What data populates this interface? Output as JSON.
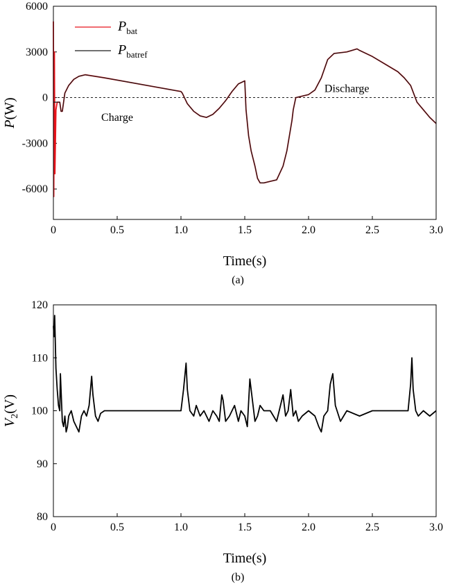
{
  "chart_data": [
    {
      "type": "line",
      "caption": "(a)",
      "xlabel": "Time(s)",
      "ylabel_main": "P",
      "ylabel_unit": "(W)",
      "xlim": [
        0,
        3.0
      ],
      "ylim": [
        -8000,
        6000
      ],
      "xticks": [
        "0",
        "0.5",
        "1.0",
        "1.5",
        "2.0",
        "2.5",
        "3.0"
      ],
      "xtick_values": [
        0,
        0.5,
        1.0,
        1.5,
        2.0,
        2.5,
        3.0
      ],
      "yticks": [
        "6000",
        "3000",
        "0",
        "-3000",
        "-6000"
      ],
      "ytick_values": [
        6000,
        3000,
        0,
        -3000,
        -6000
      ],
      "zero_line": "dashed",
      "legend_position": "top-left",
      "annotations": [
        {
          "text": "Charge",
          "x": 0.5,
          "y": -1300
        },
        {
          "text": "Discharge",
          "x": 2.3,
          "y": 600
        }
      ],
      "series": [
        {
          "name_main": "P",
          "name_sub": "bat",
          "color": "#e8141c",
          "x": [
            0,
            0.003,
            0.008,
            0.012,
            0.02,
            0.03,
            0.05,
            0.06,
            0.07,
            0.09,
            0.12,
            0.16,
            0.2,
            0.25,
            0.4,
            0.6,
            0.8,
            1.0,
            1.01,
            1.05,
            1.1,
            1.15,
            1.2,
            1.25,
            1.3,
            1.35,
            1.4,
            1.45,
            1.5,
            1.51,
            1.53,
            1.55,
            1.58,
            1.6,
            1.62,
            1.65,
            1.7,
            1.75,
            1.8,
            1.83,
            1.85,
            1.87,
            1.88,
            1.9,
            2.0,
            2.05,
            2.1,
            2.15,
            2.2,
            2.3,
            2.38,
            2.4,
            2.5,
            2.6,
            2.7,
            2.75,
            2.8,
            2.85,
            2.9,
            2.95,
            3.0
          ],
          "y": [
            5000,
            -6500,
            3000,
            -5000,
            -800,
            -300,
            -300,
            -900,
            -900,
            300,
            800,
            1200,
            1400,
            1500,
            1300,
            1000,
            700,
            400,
            300,
            -400,
            -900,
            -1200,
            -1300,
            -1100,
            -700,
            -200,
            400,
            900,
            1100,
            -800,
            -2500,
            -3500,
            -4500,
            -5300,
            -5600,
            -5600,
            -5500,
            -5400,
            -4500,
            -3500,
            -2500,
            -1500,
            -800,
            0,
            200,
            500,
            1300,
            2500,
            2900,
            3000,
            3200,
            3100,
            2700,
            2200,
            1700,
            1300,
            800,
            -300,
            -800,
            -1300,
            -1700
          ]
        },
        {
          "name_main": "P",
          "name_sub": "batref",
          "color": "#1a1a1a",
          "x": [
            0,
            0.05,
            0.06,
            0.07,
            0.09,
            0.12,
            0.16,
            0.2,
            0.25,
            0.4,
            0.6,
            0.8,
            1.0,
            1.01,
            1.05,
            1.1,
            1.15,
            1.2,
            1.25,
            1.3,
            1.35,
            1.4,
            1.45,
            1.5,
            1.51,
            1.53,
            1.55,
            1.58,
            1.6,
            1.62,
            1.65,
            1.7,
            1.75,
            1.8,
            1.83,
            1.85,
            1.87,
            1.88,
            1.9,
            2.0,
            2.05,
            2.1,
            2.15,
            2.2,
            2.3,
            2.38,
            2.4,
            2.5,
            2.6,
            2.7,
            2.75,
            2.8,
            2.85,
            2.9,
            2.95,
            3.0
          ],
          "y": [
            -300,
            -300,
            -900,
            -900,
            300,
            800,
            1200,
            1400,
            1500,
            1300,
            1000,
            700,
            400,
            300,
            -400,
            -900,
            -1200,
            -1300,
            -1100,
            -700,
            -200,
            400,
            900,
            1100,
            -800,
            -2500,
            -3500,
            -4500,
            -5300,
            -5600,
            -5600,
            -5500,
            -5400,
            -4500,
            -3500,
            -2500,
            -1500,
            -800,
            0,
            200,
            500,
            1300,
            2500,
            2900,
            3000,
            3200,
            3100,
            2700,
            2200,
            1700,
            1300,
            800,
            -300,
            -800,
            -1300,
            -1700
          ]
        }
      ]
    },
    {
      "type": "line",
      "caption": "(b)",
      "xlabel": "Time(s)",
      "ylabel_main": "V",
      "ylabel_sub": "2",
      "ylabel_unit": "(V)",
      "xlim": [
        0,
        3.0
      ],
      "ylim": [
        80,
        120
      ],
      "xticks": [
        "0",
        "0.5",
        "1.0",
        "1.5",
        "2.0",
        "2.5",
        "3.0"
      ],
      "xtick_values": [
        0,
        0.5,
        1.0,
        1.5,
        2.0,
        2.5,
        3.0
      ],
      "yticks": [
        "120",
        "110",
        "100",
        "90",
        "80"
      ],
      "ytick_values": [
        120,
        110,
        100,
        90,
        80
      ],
      "series": [
        {
          "color": "#000000",
          "x": [
            0,
            0.005,
            0.01,
            0.015,
            0.02,
            0.03,
            0.04,
            0.05,
            0.055,
            0.06,
            0.07,
            0.08,
            0.09,
            0.1,
            0.11,
            0.12,
            0.14,
            0.16,
            0.18,
            0.2,
            0.22,
            0.24,
            0.26,
            0.28,
            0.3,
            0.31,
            0.33,
            0.35,
            0.37,
            0.4,
            0.5,
            0.6,
            0.7,
            0.8,
            0.9,
            1.0,
            1.02,
            1.04,
            1.05,
            1.07,
            1.1,
            1.12,
            1.15,
            1.18,
            1.2,
            1.22,
            1.25,
            1.28,
            1.3,
            1.32,
            1.33,
            1.35,
            1.38,
            1.4,
            1.42,
            1.45,
            1.47,
            1.5,
            1.52,
            1.54,
            1.56,
            1.58,
            1.6,
            1.62,
            1.65,
            1.7,
            1.75,
            1.8,
            1.82,
            1.84,
            1.86,
            1.88,
            1.9,
            1.92,
            1.95,
            2.0,
            2.05,
            2.08,
            2.1,
            2.12,
            2.15,
            2.17,
            2.19,
            2.21,
            2.25,
            2.3,
            2.4,
            2.5,
            2.6,
            2.7,
            2.78,
            2.8,
            2.81,
            2.82,
            2.84,
            2.86,
            2.9,
            2.95,
            3.0
          ],
          "y": [
            116,
            114,
            118,
            113,
            108,
            104,
            101,
            100,
            107,
            104,
            98,
            97,
            99,
            96,
            97,
            99,
            100,
            98,
            97,
            96,
            99,
            100,
            99,
            101,
            106.5,
            103,
            99,
            98,
            99.5,
            100,
            100,
            100,
            100,
            100,
            100,
            100,
            104,
            109,
            104,
            100,
            99,
            101,
            99,
            100,
            99,
            98,
            100,
            99,
            98,
            103,
            102,
            98,
            99,
            100,
            101,
            98,
            100,
            99,
            97,
            106,
            102,
            98,
            99,
            101,
            100,
            100,
            98,
            103,
            99,
            100,
            104,
            99,
            100,
            98,
            99,
            100,
            99,
            97,
            96,
            99,
            100,
            105,
            107,
            101,
            98,
            100,
            99,
            100,
            100,
            100,
            100,
            105,
            110,
            104,
            100,
            99,
            100,
            99,
            100
          ]
        }
      ]
    }
  ]
}
